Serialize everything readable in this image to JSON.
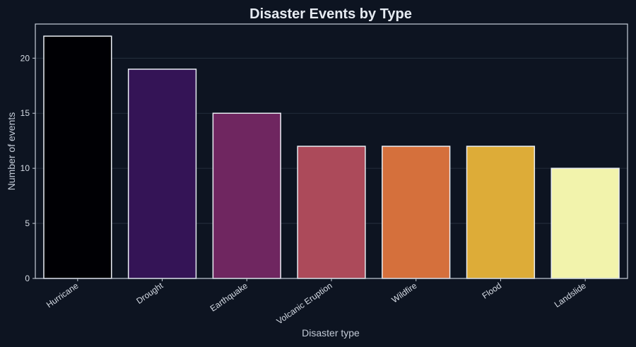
{
  "chart_data": {
    "type": "bar",
    "title": "Disaster Events by Type",
    "xlabel": "Disaster type",
    "ylabel": "Number of events",
    "categories": [
      "Hurricane",
      "Drought",
      "Earthquake",
      "Volcanic Eruption",
      "Wildfire",
      "Flood",
      "Landslide"
    ],
    "values": [
      22,
      19,
      15,
      12,
      12,
      12,
      10
    ],
    "ylim": [
      0,
      23.1
    ],
    "yticks": [
      0,
      5,
      10,
      15,
      20
    ],
    "grid": true,
    "legend": "none",
    "colors": [
      "#000004",
      "#341456",
      "#6f2660",
      "#ac4a5a",
      "#d5703c",
      "#ddac38",
      "#f2f3ac"
    ]
  },
  "theme": {
    "background": "#0d1421",
    "text": "#e6ebf2",
    "grid": "#2a3443",
    "frame": "#c7ced9",
    "bar_edge": "#e9edf3"
  }
}
